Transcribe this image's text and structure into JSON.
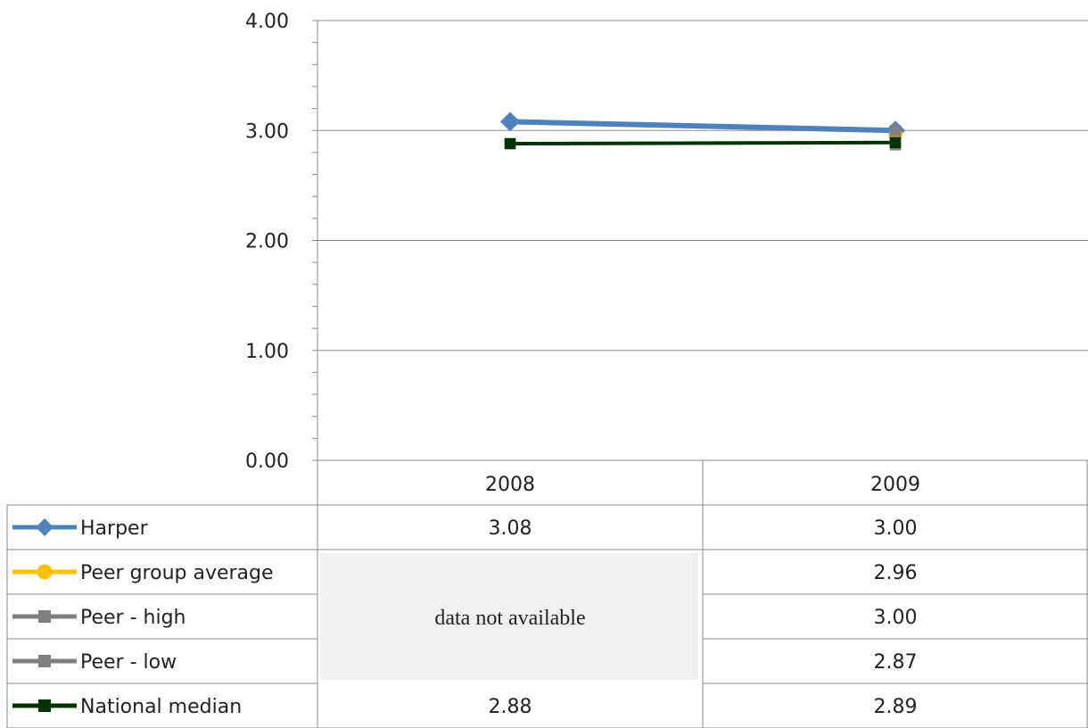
{
  "chart_data": {
    "type": "line",
    "categories": [
      "2008",
      "2009"
    ],
    "ylim": [
      0,
      4
    ],
    "y_ticks": [
      "0.00",
      "1.00",
      "2.00",
      "3.00",
      "4.00"
    ],
    "grid": true,
    "legend_placement": "data-table-left",
    "series": [
      {
        "name": "Harper",
        "values": [
          3.08,
          3.0
        ],
        "labels": [
          "3.08",
          "3.00"
        ],
        "color": "#4F81BD",
        "marker": "diamond"
      },
      {
        "name": "Peer group average",
        "values": [
          null,
          2.96
        ],
        "labels": [
          null,
          "2.96"
        ],
        "color": "#FFC000",
        "marker": "circle"
      },
      {
        "name": "Peer - high",
        "values": [
          null,
          3.0
        ],
        "labels": [
          null,
          "3.00"
        ],
        "color": "#808080",
        "marker": "square"
      },
      {
        "name": "Peer - low",
        "values": [
          null,
          2.87
        ],
        "labels": [
          null,
          "2.87"
        ],
        "color": "#808080",
        "marker": "square"
      },
      {
        "name": "National median",
        "values": [
          2.88,
          2.89
        ],
        "labels": [
          "2.88",
          "2.89"
        ],
        "color": "#003300",
        "marker": "square"
      }
    ],
    "annotations": [
      "data not available"
    ]
  }
}
